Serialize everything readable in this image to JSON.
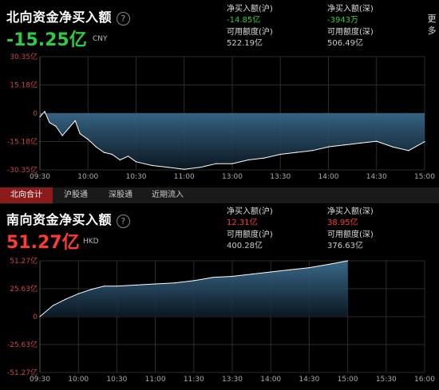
{
  "north": {
    "title": "北向资金净买入额",
    "help_icon": "?",
    "value": "-15.25亿",
    "currency": "CNY",
    "labels": {
      "net_sh": "净买入额(沪)",
      "net_sz": "净买入额(深)",
      "quota_sh": "可用额度(沪)",
      "quota_sz": "可用额度(深)"
    },
    "values": {
      "net_sh": "-14.85亿",
      "net_sz": "-3943万",
      "quota_sh": "522.19亿",
      "quota_sz": "506.49亿"
    },
    "colors": {
      "value": "#2ecc40"
    }
  },
  "south": {
    "title": "南向资金净买入额",
    "help_icon": "?",
    "value": "51.27亿",
    "currency": "HKD",
    "labels": {
      "net_sh": "净买入额(沪)",
      "net_sz": "净买入额(深)",
      "quota_sh": "可用额度(沪)",
      "quota_sz": "可用额度(深)"
    },
    "values": {
      "net_sh": "12.31亿",
      "net_sz": "38.95亿",
      "quota_sh": "400.28亿",
      "quota_sz": "376.63亿"
    },
    "colors": {
      "value": "#ff3b30"
    }
  },
  "more_label": "更多",
  "tabs": [
    "北向合计",
    "沪股通",
    "深股通",
    "近期流入"
  ],
  "chart_data": [
    {
      "type": "area",
      "ylim": [
        -30.35,
        30.35
      ],
      "y_ticks": [
        "30.35亿",
        "15.18亿",
        "0",
        "-15.18亿",
        "-30.35亿"
      ],
      "x_ticks": [
        "09:30",
        "10:00",
        "10:30",
        "11:00",
        "13:00",
        "13:30",
        "14:00",
        "14:30",
        "15:00"
      ],
      "series": [
        {
          "x": [
            "09:30",
            "09:33",
            "09:36",
            "09:40",
            "09:44",
            "09:48",
            "09:52",
            "09:55",
            "10:00",
            "10:05",
            "10:10",
            "10:15",
            "10:20",
            "10:25",
            "10:30",
            "10:40",
            "10:50",
            "11:00",
            "11:10",
            "11:20",
            "11:30",
            "13:10",
            "13:20",
            "13:30",
            "13:40",
            "13:50",
            "14:00",
            "14:10",
            "14:20",
            "14:30",
            "14:40",
            "14:50",
            "15:00"
          ],
          "y": [
            -2,
            1,
            -5,
            -7,
            -12,
            -8,
            -4,
            -11,
            -14,
            -18,
            -21,
            -22,
            -25,
            -23,
            -26,
            -28,
            -29,
            -30,
            -29,
            -27,
            -27,
            -25,
            -24,
            -22,
            -21,
            -20,
            -18,
            -17,
            -16,
            -15,
            -18,
            -20,
            -15.25
          ]
        }
      ],
      "colors": {
        "line": "#ffffff",
        "fill_top": "#3a6a8c",
        "fill_bottom": "#0c1a26"
      }
    },
    {
      "type": "area",
      "ylim": [
        -51.27,
        51.27
      ],
      "y_ticks": [
        "51.27亿",
        "25.63亿",
        "0",
        "-25.63亿",
        "-51.27亿"
      ],
      "x_ticks": [
        "09:30",
        "10:00",
        "10:30",
        "11:00",
        "11:30",
        "13:30",
        "14:00",
        "14:30",
        "15:00",
        "15:30",
        "16:00"
      ],
      "series": [
        {
          "x": [
            "09:30",
            "09:40",
            "09:50",
            "10:00",
            "10:10",
            "10:20",
            "10:30",
            "10:45",
            "11:00",
            "11:15",
            "11:30",
            "13:15",
            "13:30",
            "13:45",
            "14:00",
            "14:15",
            "14:30",
            "14:45",
            "15:00"
          ],
          "y": [
            0,
            10,
            16,
            21,
            25,
            28,
            28,
            29,
            30,
            31,
            33,
            36,
            37,
            39,
            41,
            43,
            45,
            48,
            51.27
          ]
        }
      ],
      "colors": {
        "line": "#ffffff",
        "fill_top": "#3d6e91",
        "fill_bottom": "#0d1b28"
      }
    }
  ]
}
